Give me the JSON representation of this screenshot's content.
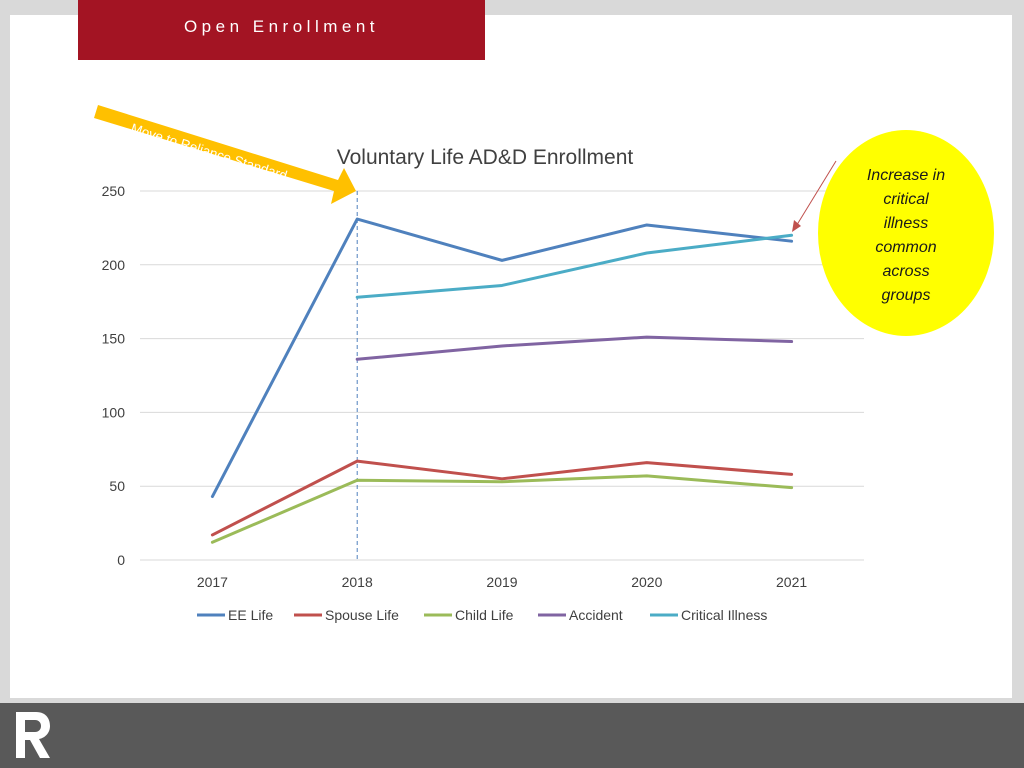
{
  "header": {
    "title": "Open Enrollment"
  },
  "colors": {
    "header_bg": "#a31423",
    "footer_bg": "#595959",
    "arrow": "#ffc000",
    "callout_bg": "#ffff00",
    "callout_arrow": "#c0504d"
  },
  "annotations": {
    "arrow_label": "Move to Reliance Standard",
    "callout_lines": [
      "Increase in",
      "critical",
      "illness",
      "common",
      "across",
      "groups"
    ]
  },
  "footer": {
    "logo_icon": "reliance-r-logo-icon"
  },
  "chart_data": {
    "type": "line",
    "title": "Voluntary Life AD&D Enrollment",
    "xlabel": "",
    "ylabel": "",
    "categories": [
      "2017",
      "2018",
      "2019",
      "2020",
      "2021"
    ],
    "ylim": [
      0,
      250
    ],
    "yticks": [
      0,
      50,
      100,
      150,
      200,
      250
    ],
    "grid": true,
    "legend_position": "bottom",
    "reference_line": {
      "x": "2018",
      "style": "dashed"
    },
    "series": [
      {
        "name": "EE Life",
        "color": "#4f81bd",
        "values": [
          43,
          231,
          203,
          227,
          216
        ]
      },
      {
        "name": "Spouse Life",
        "color": "#c0504d",
        "values": [
          17,
          67,
          55,
          66,
          58
        ]
      },
      {
        "name": "Child Life",
        "color": "#9bbb59",
        "values": [
          12,
          54,
          53,
          57,
          49
        ]
      },
      {
        "name": "Accident",
        "color": "#8064a2",
        "values": [
          null,
          136,
          145,
          151,
          148
        ]
      },
      {
        "name": "Critical Illness",
        "color": "#4bacc6",
        "values": [
          null,
          178,
          186,
          208,
          220
        ]
      }
    ]
  }
}
